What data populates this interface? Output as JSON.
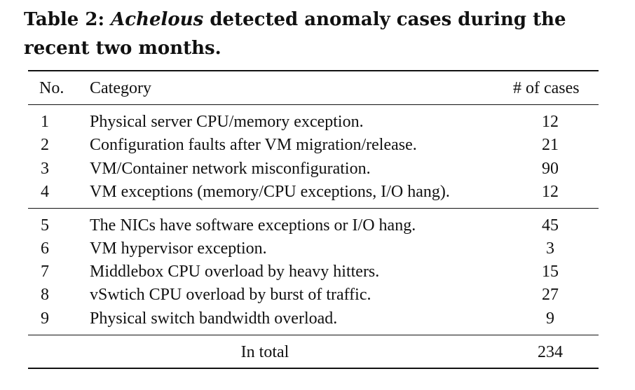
{
  "caption": {
    "prefix": "Table 2: ",
    "emphasis": "Achelous",
    "suffix": " detected anomaly cases during the recent two months."
  },
  "table": {
    "headers": {
      "no": "No.",
      "category": "Category",
      "cases": "# of cases"
    },
    "group1": [
      {
        "no": "1",
        "category": "Physical server CPU/memory exception.",
        "cases": "12"
      },
      {
        "no": "2",
        "category": "Configuration faults after VM migration/release.",
        "cases": "21"
      },
      {
        "no": "3",
        "category": "VM/Container network misconfiguration.",
        "cases": "90"
      },
      {
        "no": "4",
        "category": "VM exceptions (memory/CPU exceptions, I/O hang).",
        "cases": "12"
      }
    ],
    "group2": [
      {
        "no": "5",
        "category": "The NICs have software exceptions or I/O hang.",
        "cases": "45"
      },
      {
        "no": "6",
        "category": "VM hypervisor exception.",
        "cases": "3"
      },
      {
        "no": "7",
        "category": "Middlebox CPU overload by heavy hitters.",
        "cases": "15"
      },
      {
        "no": "8",
        "category": "vSwtich CPU overload by burst of traffic.",
        "cases": "27"
      },
      {
        "no": "9",
        "category": "Physical switch bandwidth overload.",
        "cases": "9"
      }
    ],
    "total": {
      "label": "In total",
      "cases": "234"
    }
  }
}
